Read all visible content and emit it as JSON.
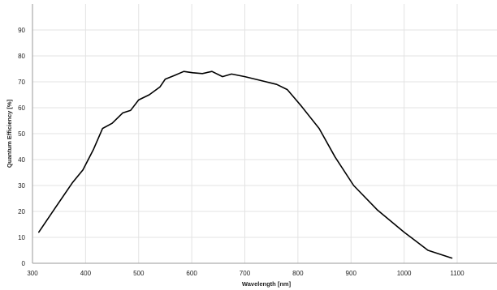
{
  "chart_data": {
    "type": "line",
    "xlabel": "Wavelength [nm]",
    "ylabel": "Quantum Efficiency [%]",
    "xlim": [
      300,
      1175
    ],
    "ylim": [
      0,
      100
    ],
    "x_ticks": [
      300,
      400,
      500,
      600,
      700,
      800,
      900,
      1000,
      1100
    ],
    "y_ticks": [
      0,
      10,
      20,
      30,
      40,
      50,
      60,
      70,
      80,
      90
    ],
    "grid": true,
    "legend": "none",
    "series": [
      {
        "color": "#000000",
        "points": [
          [
            312,
            12
          ],
          [
            345,
            22
          ],
          [
            375,
            31
          ],
          [
            395,
            36
          ],
          [
            415,
            44
          ],
          [
            432,
            52
          ],
          [
            450,
            54
          ],
          [
            470,
            58
          ],
          [
            485,
            59
          ],
          [
            500,
            63
          ],
          [
            520,
            65
          ],
          [
            540,
            68
          ],
          [
            550,
            71
          ],
          [
            568,
            72.5
          ],
          [
            585,
            74
          ],
          [
            602,
            73.5
          ],
          [
            620,
            73.2
          ],
          [
            638,
            74
          ],
          [
            658,
            72
          ],
          [
            675,
            73
          ],
          [
            700,
            72
          ],
          [
            730,
            70.5
          ],
          [
            760,
            69
          ],
          [
            780,
            67
          ],
          [
            805,
            61
          ],
          [
            840,
            52
          ],
          [
            870,
            41
          ],
          [
            905,
            30
          ],
          [
            950,
            20.5
          ],
          [
            1000,
            12
          ],
          [
            1045,
            5
          ],
          [
            1090,
            2
          ]
        ]
      }
    ]
  }
}
